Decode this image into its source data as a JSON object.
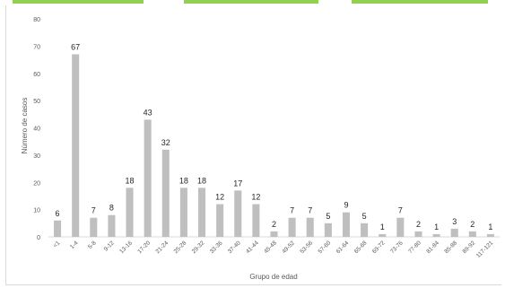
{
  "colors": {
    "accent_bars": "#92d050",
    "bar_fill": "#bfbfbf",
    "axis": "#d9d9d9",
    "tick_text": "#595959",
    "value_text": "#262626"
  },
  "chart_data": {
    "type": "bar",
    "title": "",
    "xlabel": "Grupo de edad",
    "ylabel": "Número de casos",
    "ylim": [
      0,
      80
    ],
    "yticks": [
      0,
      10,
      20,
      30,
      40,
      50,
      60,
      70,
      80
    ],
    "grid": false,
    "categories": [
      "<1",
      "1-4",
      "5-8",
      "9-12",
      "13-16",
      "17-20",
      "21-24",
      "25-28",
      "29-32",
      "33-36",
      "37-40",
      "41-44",
      "45-48",
      "49-52",
      "53-56",
      "57-60",
      "61-64",
      "65-68",
      "69-72",
      "73-76",
      "77-80",
      "81-84",
      "85-88",
      "89-92",
      "117-121"
    ],
    "values": [
      6,
      67,
      7,
      8,
      18,
      43,
      32,
      18,
      18,
      12,
      17,
      12,
      2,
      7,
      7,
      5,
      9,
      5,
      1,
      7,
      2,
      1,
      3,
      2,
      1
    ],
    "value_labels": [
      "6",
      "67",
      "7",
      "8",
      "18",
      "43",
      "32",
      "18",
      "18",
      "12",
      "17",
      "12",
      "2",
      "7",
      "7",
      "5",
      "9",
      "5",
      "1",
      "7",
      "2",
      "1",
      "3",
      "2",
      "1"
    ]
  }
}
